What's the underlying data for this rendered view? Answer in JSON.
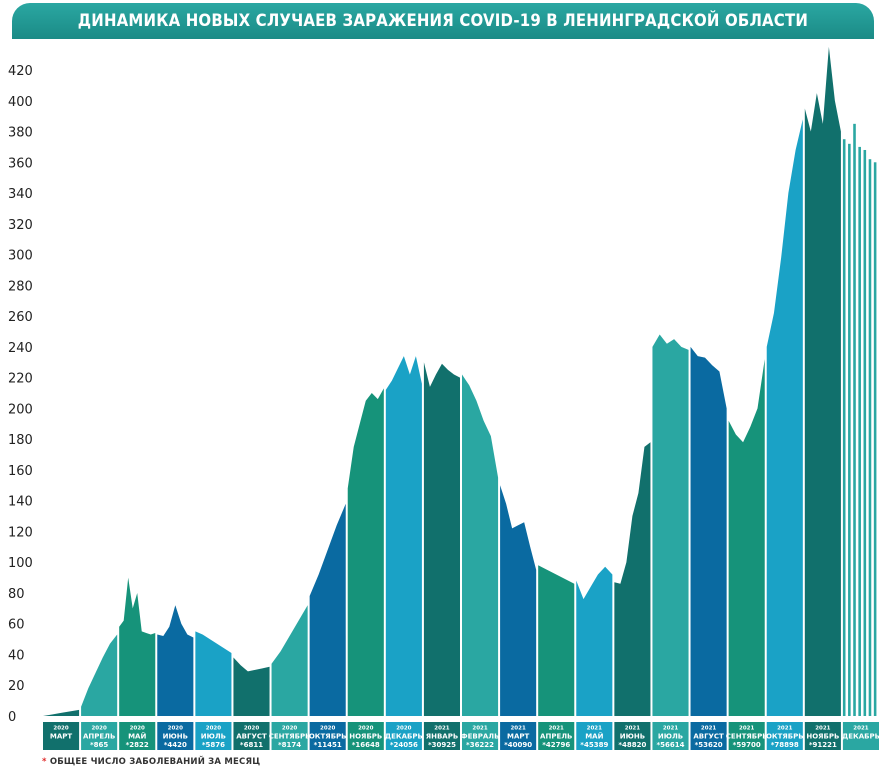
{
  "header": {
    "title": "ДИНАМИКА НОВЫХ СЛУЧАЕВ ЗАРАЖЕНИЯ COVID-19 В ЛЕНИНГРАДСКОЙ ОБЛАСТИ"
  },
  "footnote": {
    "star": "*",
    "text": "ОБЩЕЕ ЧИСЛО ЗАБОЛЕВАНИЙ ЗА МЕСЯЦ"
  },
  "colors": [
    "#11706c",
    "#2aa7a2",
    "#16937a",
    "#0a6aa1",
    "#1aa2c6"
  ],
  "chart_data": {
    "type": "area",
    "title": "ДИНАМИКА НОВЫХ СЛУЧАЕВ ЗАРАЖЕНИЯ COVID-19 В ЛЕНИНГРАДСКОЙ ОБЛАСТИ",
    "xlabel": "",
    "ylabel": "",
    "ylim": [
      0,
      430
    ],
    "yticks": [
      0,
      20,
      40,
      60,
      80,
      100,
      120,
      140,
      160,
      180,
      200,
      220,
      240,
      260,
      280,
      300,
      320,
      340,
      360,
      380,
      400,
      420
    ],
    "grid": false,
    "months": [
      {
        "year": "2020",
        "name": "МАРТ",
        "total": "",
        "color": "#11706c",
        "values": [
          0,
          1,
          2,
          3,
          4
        ]
      },
      {
        "year": "2020",
        "name": "АПРЕЛЬ",
        "total": "*865",
        "color": "#2aa7a2",
        "values": [
          6,
          18,
          28,
          38,
          47,
          53
        ]
      },
      {
        "year": "2020",
        "name": "МАЙ",
        "total": "*2822",
        "color": "#16937a",
        "values": [
          58,
          62,
          90,
          70,
          80,
          55,
          54,
          53,
          54
        ]
      },
      {
        "year": "2020",
        "name": "ИЮНЬ",
        "total": "*4420",
        "color": "#0a6aa1",
        "values": [
          53,
          52,
          58,
          72,
          60,
          53,
          51
        ]
      },
      {
        "year": "2020",
        "name": "ИЮЛЬ",
        "total": "*5876",
        "color": "#1aa2c6",
        "values": [
          55,
          53,
          50,
          47,
          44,
          41
        ]
      },
      {
        "year": "2020",
        "name": "АВГУСТ",
        "total": "*6811",
        "color": "#11706c",
        "values": [
          38,
          33,
          29,
          30,
          31,
          32
        ]
      },
      {
        "year": "2020",
        "name": "СЕНТЯБРЬ",
        "total": "*8174",
        "color": "#2aa7a2",
        "values": [
          34,
          42,
          52,
          62,
          72
        ]
      },
      {
        "year": "2020",
        "name": "ОКТЯБРЬ",
        "total": "*11451",
        "color": "#0a6aa1",
        "values": [
          78,
          92,
          108,
          124,
          138
        ]
      },
      {
        "year": "2020",
        "name": "НОЯБРЬ",
        "total": "*16648",
        "color": "#16937a",
        "values": [
          148,
          175,
          190,
          205,
          210,
          206,
          213
        ]
      },
      {
        "year": "2020",
        "name": "ДЕКАБРЬ",
        "total": "*24056",
        "color": "#1aa2c6",
        "values": [
          212,
          218,
          226,
          234,
          222,
          234,
          216
        ]
      },
      {
        "year": "2021",
        "name": "ЯНВАРЬ",
        "total": "*30925",
        "color": "#11706c",
        "values": [
          230,
          214,
          222,
          229,
          225,
          222,
          220
        ]
      },
      {
        "year": "2021",
        "name": "ФЕВРАЛЬ",
        "total": "*36222",
        "color": "#2aa7a2",
        "values": [
          222,
          215,
          205,
          192,
          182,
          155
        ]
      },
      {
        "year": "2021",
        "name": "МАРТ",
        "total": "*40090",
        "color": "#0a6aa1",
        "values": [
          150,
          138,
          122,
          124,
          126,
          110,
          95
        ]
      },
      {
        "year": "2021",
        "name": "АПРЕЛЬ",
        "total": "*42796",
        "color": "#16937a",
        "values": [
          98,
          95,
          92,
          89,
          86
        ]
      },
      {
        "year": "2021",
        "name": "МАЙ",
        "total": "*45389",
        "color": "#1aa2c6",
        "values": [
          88,
          76,
          84,
          92,
          97,
          92
        ]
      },
      {
        "year": "2021",
        "name": "ИЮНЬ",
        "total": "*48820",
        "color": "#11706c",
        "values": [
          87,
          86,
          100,
          130,
          145,
          175,
          178
        ]
      },
      {
        "year": "2021",
        "name": "ИЮЛЬ",
        "total": "*56614",
        "color": "#2aa7a2",
        "values": [
          240,
          248,
          242,
          245,
          240,
          238
        ]
      },
      {
        "year": "2021",
        "name": "АВГУСТ",
        "total": "*53620",
        "color": "#0a6aa1",
        "values": [
          240,
          234,
          233,
          228,
          224,
          200
        ]
      },
      {
        "year": "2021",
        "name": "СЕНТЯБРЬ",
        "total": "*59700",
        "color": "#16937a",
        "values": [
          192,
          183,
          178,
          188,
          200,
          232
        ]
      },
      {
        "year": "2021",
        "name": "ОКТЯБРЬ",
        "total": "*78898",
        "color": "#1aa2c6",
        "values": [
          240,
          262,
          298,
          340,
          368,
          388
        ]
      },
      {
        "year": "2021",
        "name": "НОЯБРЬ",
        "total": "*91221",
        "color": "#11706c",
        "values": [
          395,
          380,
          405,
          385,
          435,
          400,
          380
        ]
      },
      {
        "year": "2021",
        "name": "ДЕКАБРЬ",
        "total": "",
        "color": "#2aa7a2",
        "values": [
          375,
          372,
          385,
          370,
          368,
          362,
          360
        ]
      }
    ]
  }
}
